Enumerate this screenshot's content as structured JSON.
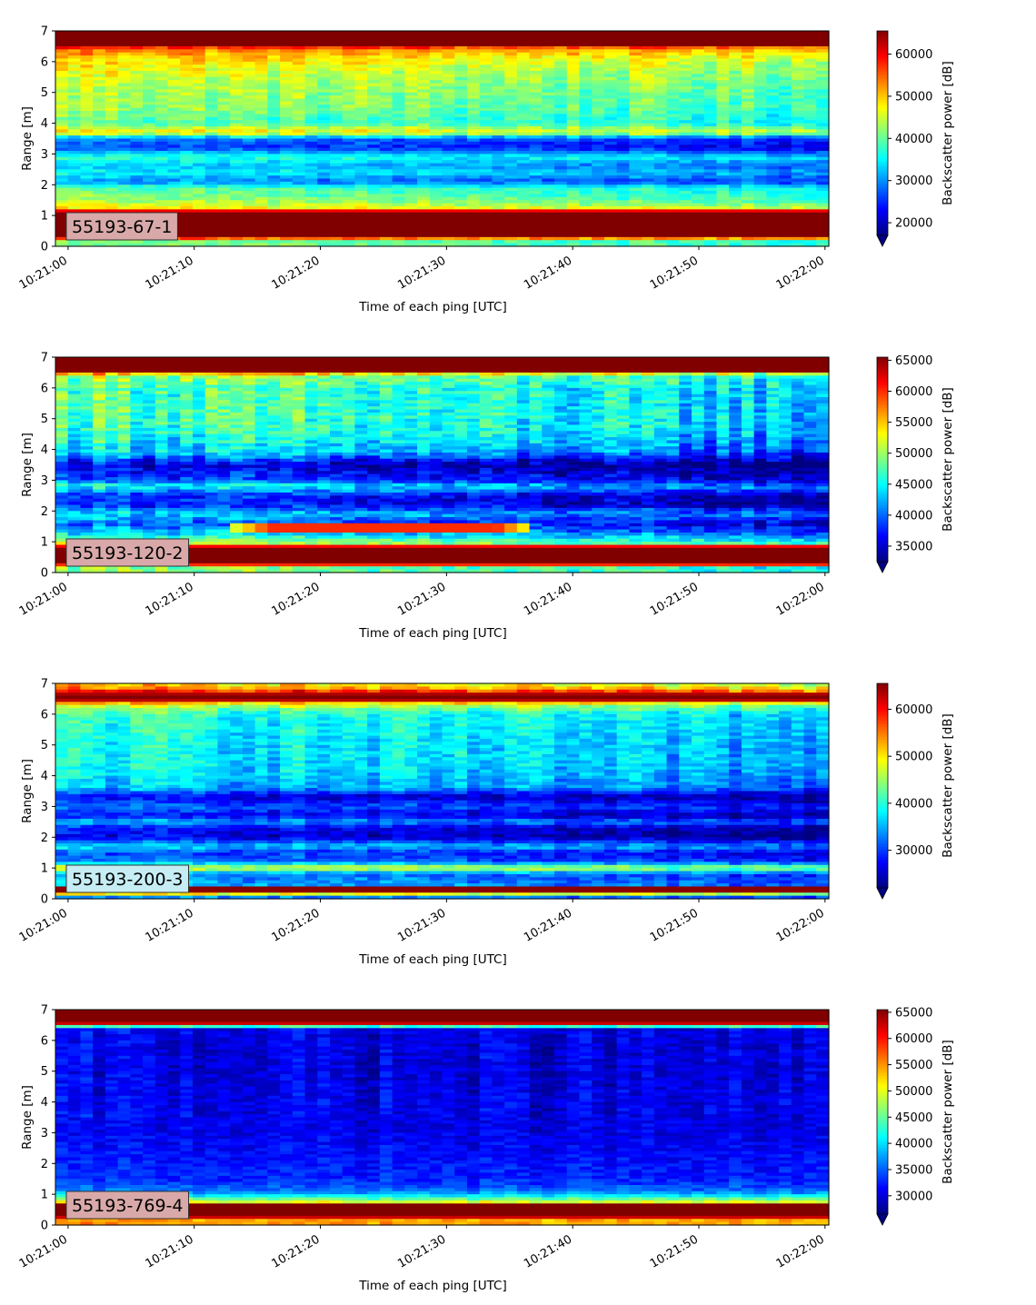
{
  "chart_data": [
    {
      "type": "heatmap",
      "tag": "55193-67-1",
      "tag_color": "#d9a9a9",
      "xlabel": "Time of each ping [UTC]",
      "ylabel": "Range [m]",
      "colorbar_label": "Backscatter power [dB]",
      "x_ticks": [
        "10:21:00",
        "10:21:10",
        "10:21:20",
        "10:21:30",
        "10:21:40",
        "10:21:50",
        "10:22:00"
      ],
      "x_range_s": [
        -1,
        60.3
      ],
      "y_ticks": [
        0,
        1,
        2,
        3,
        4,
        5,
        6,
        7
      ],
      "ylim": [
        0,
        7
      ],
      "clim": [
        17000,
        65500
      ],
      "colorbar_ticks": [
        20000,
        30000,
        40000,
        50000,
        60000
      ],
      "colormap": "jet",
      "colorbar_extend": "min",
      "profile": [
        [
          0.2,
          42000
        ],
        [
          0.3,
          70000
        ],
        [
          1.1,
          70000
        ],
        [
          1.2,
          50000
        ],
        [
          1.5,
          43000
        ],
        [
          1.9,
          40000
        ],
        [
          2.1,
          30000
        ],
        [
          2.4,
          36000
        ],
        [
          2.6,
          33000
        ],
        [
          2.9,
          38000
        ],
        [
          3.2,
          27000
        ],
        [
          3.5,
          30000
        ],
        [
          3.7,
          50000
        ],
        [
          4.0,
          40000
        ],
        [
          4.5,
          43000
        ],
        [
          5.0,
          44000
        ],
        [
          5.5,
          46000
        ],
        [
          6.0,
          49000
        ],
        [
          6.4,
          55000
        ],
        [
          6.6,
          70000
        ],
        [
          7.0,
          70000
        ]
      ],
      "drift": -5000,
      "noise": 5000
    },
    {
      "type": "heatmap",
      "tag": "55193-120-2",
      "tag_color": "#d9a9a9",
      "xlabel": "Time of each ping [UTC]",
      "ylabel": "Range [m]",
      "colorbar_label": "Backscatter power [dB]",
      "x_ticks": [
        "10:21:00",
        "10:21:10",
        "10:21:20",
        "10:21:30",
        "10:21:40",
        "10:21:50",
        "10:22:00"
      ],
      "x_range_s": [
        -1,
        60.3
      ],
      "y_ticks": [
        0,
        1,
        2,
        3,
        4,
        5,
        6,
        7
      ],
      "ylim": [
        0,
        7
      ],
      "clim": [
        32500,
        65500
      ],
      "colorbar_ticks": [
        35000,
        40000,
        45000,
        50000,
        55000,
        60000,
        65000
      ],
      "colormap": "jet",
      "colorbar_extend": "min",
      "profile": [
        [
          0.2,
          50000
        ],
        [
          0.3,
          70000
        ],
        [
          0.8,
          70000
        ],
        [
          0.9,
          53000
        ],
        [
          1.1,
          48000
        ],
        [
          1.3,
          44000
        ],
        [
          1.6,
          40000
        ],
        [
          1.9,
          45000
        ],
        [
          2.2,
          38000
        ],
        [
          2.5,
          39000
        ],
        [
          2.8,
          46000
        ],
        [
          3.0,
          40000
        ],
        [
          3.3,
          38000
        ],
        [
          3.5,
          36000
        ],
        [
          3.9,
          44000
        ],
        [
          4.5,
          47000
        ],
        [
          5.0,
          48000
        ],
        [
          5.5,
          48000
        ],
        [
          6.0,
          48000
        ],
        [
          6.4,
          51000
        ],
        [
          6.6,
          70000
        ],
        [
          7.0,
          70000
        ]
      ],
      "drift": -5000,
      "noise": 5000,
      "feature": {
        "y": 1.45,
        "t_start": 13,
        "t_end": 37,
        "value": 60000,
        "width": 0.15
      }
    },
    {
      "type": "heatmap",
      "tag": "55193-200-3",
      "tag_color": "#c6ecf4",
      "xlabel": "Time of each ping [UTC]",
      "ylabel": "Range [m]",
      "colorbar_label": "Backscatter power [dB]",
      "x_ticks": [
        "10:21:00",
        "10:21:10",
        "10:21:20",
        "10:21:30",
        "10:21:40",
        "10:21:50",
        "10:22:00"
      ],
      "x_range_s": [
        -1,
        60.3
      ],
      "y_ticks": [
        0,
        1,
        2,
        3,
        4,
        5,
        6,
        7
      ],
      "ylim": [
        0,
        7
      ],
      "clim": [
        22000,
        65500
      ],
      "colorbar_ticks": [
        30000,
        40000,
        50000,
        60000
      ],
      "colormap": "jet",
      "colorbar_extend": "min",
      "profile": [
        [
          0.1,
          35000
        ],
        [
          0.2,
          65000
        ],
        [
          0.35,
          65000
        ],
        [
          0.45,
          36000
        ],
        [
          0.8,
          34000
        ],
        [
          1.0,
          50000
        ],
        [
          1.2,
          33000
        ],
        [
          1.5,
          31000
        ],
        [
          1.7,
          38000
        ],
        [
          2.0,
          27000
        ],
        [
          2.3,
          28000
        ],
        [
          2.5,
          36000
        ],
        [
          2.7,
          28000
        ],
        [
          3.0,
          33000
        ],
        [
          3.3,
          27000
        ],
        [
          3.6,
          36000
        ],
        [
          4.0,
          38000
        ],
        [
          4.5,
          39000
        ],
        [
          5.0,
          39000
        ],
        [
          5.5,
          40000
        ],
        [
          6.0,
          41000
        ],
        [
          6.3,
          48000
        ],
        [
          6.5,
          68000
        ],
        [
          6.7,
          62000
        ],
        [
          6.9,
          52000
        ],
        [
          7.0,
          52000
        ]
      ],
      "drift": -5000,
      "noise": 5000
    },
    {
      "type": "heatmap",
      "tag": "55193-769-4",
      "tag_color": "#d9a9a9",
      "xlabel": "Time of each ping [UTC]",
      "ylabel": "Range [m]",
      "colorbar_label": "Backscatter power [dB]",
      "x_ticks": [
        "10:21:00",
        "10:21:10",
        "10:21:20",
        "10:21:30",
        "10:21:40",
        "10:21:50",
        "10:22:00"
      ],
      "x_range_s": [
        -1,
        60.3
      ],
      "y_ticks": [
        0,
        1,
        2,
        3,
        4,
        5,
        6,
        7
      ],
      "ylim": [
        0,
        7
      ],
      "clim": [
        26500,
        65500
      ],
      "colorbar_ticks": [
        30000,
        35000,
        40000,
        45000,
        50000,
        55000,
        60000,
        65000
      ],
      "colormap": "jet",
      "colorbar_extend": "min",
      "profile": [
        [
          0.2,
          55000
        ],
        [
          0.3,
          70000
        ],
        [
          0.65,
          70000
        ],
        [
          0.75,
          50000
        ],
        [
          0.9,
          43000
        ],
        [
          1.1,
          36000
        ],
        [
          1.5,
          33000
        ],
        [
          2.0,
          32500
        ],
        [
          3.0,
          31000
        ],
        [
          4.0,
          31000
        ],
        [
          5.0,
          30500
        ],
        [
          6.0,
          30500
        ],
        [
          6.4,
          31000
        ],
        [
          6.5,
          55000
        ],
        [
          6.6,
          70000
        ],
        [
          7.0,
          70000
        ]
      ],
      "drift": -1000,
      "noise": 3500
    }
  ]
}
